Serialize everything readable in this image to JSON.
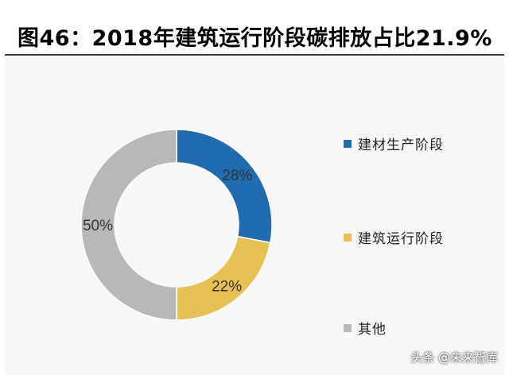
{
  "title": "图46：2018年建筑运行阶段碳排放占比21.9%",
  "watermark": "头条 @未来智库",
  "chart_data": {
    "type": "pie",
    "donut": true,
    "categories": [
      "建材生产阶段",
      "建筑运行阶段",
      "其他"
    ],
    "values": [
      28,
      22,
      50
    ],
    "labels": [
      "28%",
      "22%",
      "50%"
    ],
    "colors": [
      "#1f6cb0",
      "#e8c155",
      "#b8b8b8"
    ],
    "legend_position": "right"
  }
}
